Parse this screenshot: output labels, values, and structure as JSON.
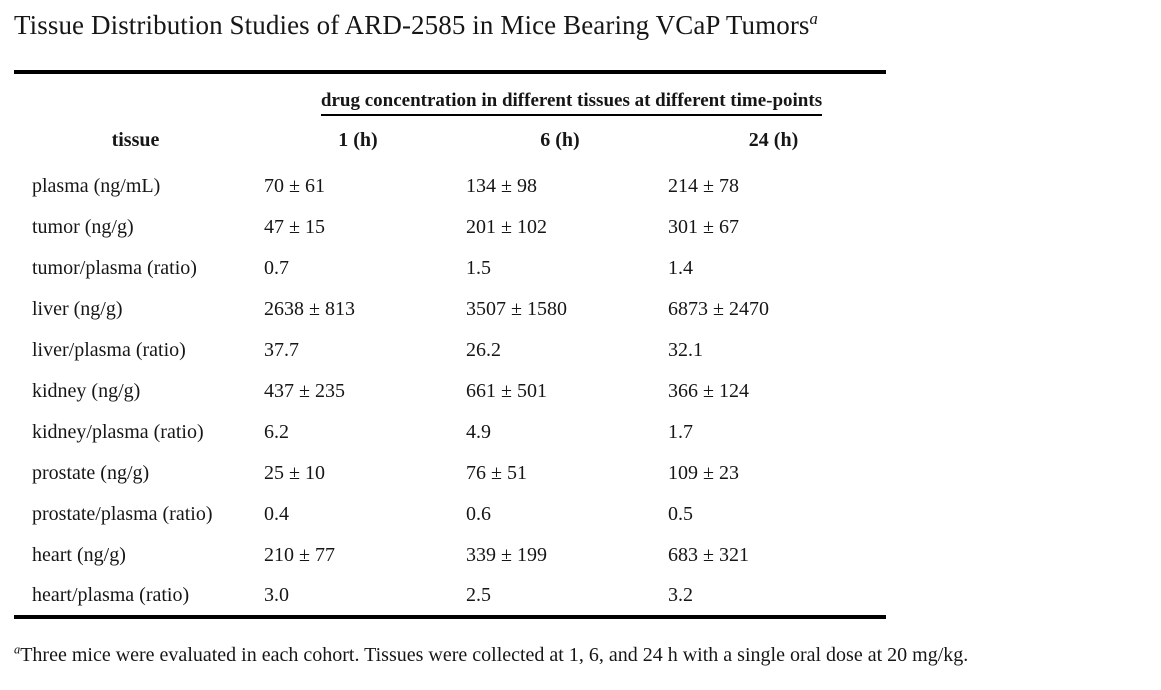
{
  "title": {
    "text": "Tissue Distribution Studies of ARD-2585 in Mice Bearing VCaP Tumors",
    "superscript": "a"
  },
  "table": {
    "spanning_header": "drug concentration in different tissues at different time-points",
    "columns": [
      "tissue",
      "1 (h)",
      "6 (h)",
      "24 (h)"
    ],
    "rows": [
      {
        "tissue": "plasma (ng/mL)",
        "values": [
          "70 ± 61",
          "134 ± 98",
          "214 ± 78"
        ]
      },
      {
        "tissue": "tumor (ng/g)",
        "values": [
          "47 ± 15",
          "201 ± 102",
          "301 ± 67"
        ]
      },
      {
        "tissue": "tumor/plasma (ratio)",
        "values": [
          "0.7",
          "1.5",
          "1.4"
        ]
      },
      {
        "tissue": "liver (ng/g)",
        "values": [
          "2638 ± 813",
          "3507 ± 1580",
          "6873 ± 2470"
        ]
      },
      {
        "tissue": "liver/plasma (ratio)",
        "values": [
          "37.7",
          "26.2",
          "32.1"
        ]
      },
      {
        "tissue": "kidney (ng/g)",
        "values": [
          "437 ± 235",
          "661 ± 501",
          "366 ± 124"
        ]
      },
      {
        "tissue": "kidney/plasma (ratio)",
        "values": [
          "6.2",
          "4.9",
          "1.7"
        ]
      },
      {
        "tissue": "prostate (ng/g)",
        "values": [
          "25 ± 10",
          "76 ± 51",
          "109 ± 23"
        ]
      },
      {
        "tissue": "prostate/plasma (ratio)",
        "values": [
          "0.4",
          "0.6",
          "0.5"
        ]
      },
      {
        "tissue": "heart (ng/g)",
        "values": [
          "210 ± 77",
          "339 ± 199",
          "683 ± 321"
        ]
      },
      {
        "tissue": "heart/plasma (ratio)",
        "values": [
          "3.0",
          "2.5",
          "3.2"
        ]
      }
    ]
  },
  "footnote": {
    "superscript": "a",
    "text": "Three mice were evaluated in each cohort. Tissues were collected at 1, 6, and 24 h with a single oral dose at 20 mg/kg."
  },
  "colors": {
    "text": "#161616",
    "rule": "#000000",
    "background": "#ffffff"
  }
}
